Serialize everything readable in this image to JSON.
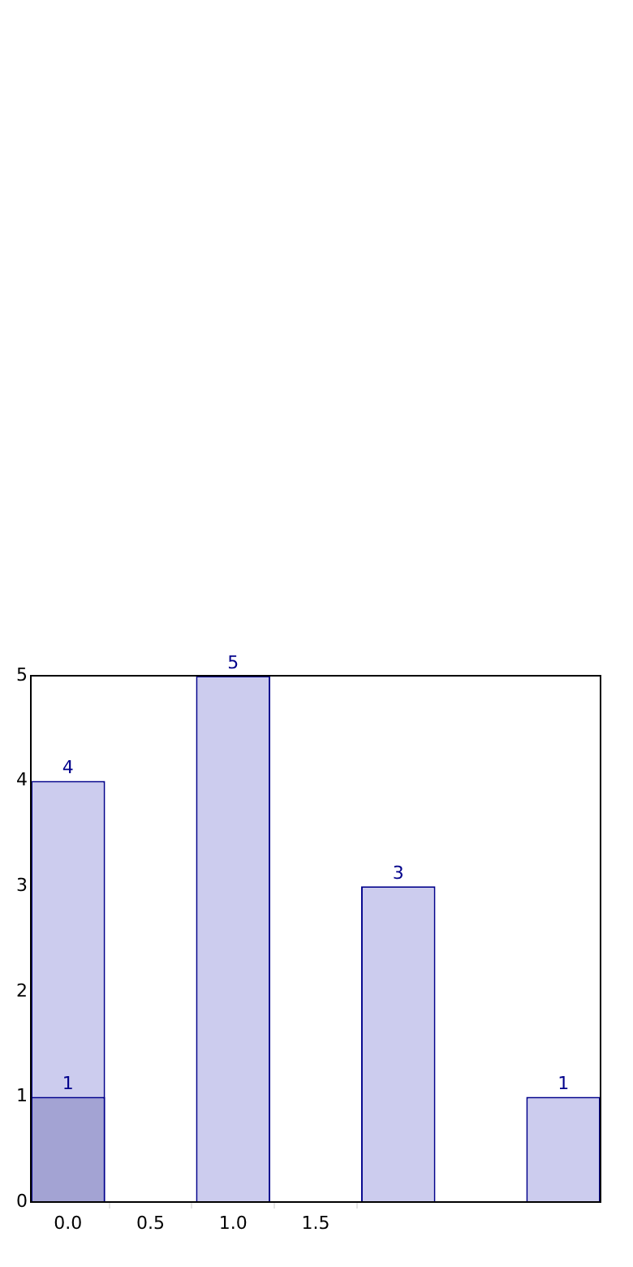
{
  "chart_data": {
    "type": "bar",
    "xlim": [
      -0.225,
      3.225
    ],
    "xticks": [
      {
        "value": 0,
        "label": "0.0"
      },
      {
        "value": 0.5,
        "label": "0.5"
      },
      {
        "value": 1,
        "label": "1.0"
      },
      {
        "value": 1.5,
        "label": "1.5"
      }
    ],
    "ylim": [
      0,
      5
    ],
    "yticks": [
      0,
      1,
      2,
      3,
      4,
      5
    ],
    "grid": false,
    "legend": false,
    "data_labels": true,
    "series": [
      {
        "color": "#ccccee",
        "x": [
          0,
          1,
          2,
          3
        ],
        "values": [
          4,
          5,
          3,
          1
        ]
      },
      {
        "color": "#a3a3d3",
        "x": [
          0
        ],
        "values": [
          1
        ]
      }
    ]
  }
}
